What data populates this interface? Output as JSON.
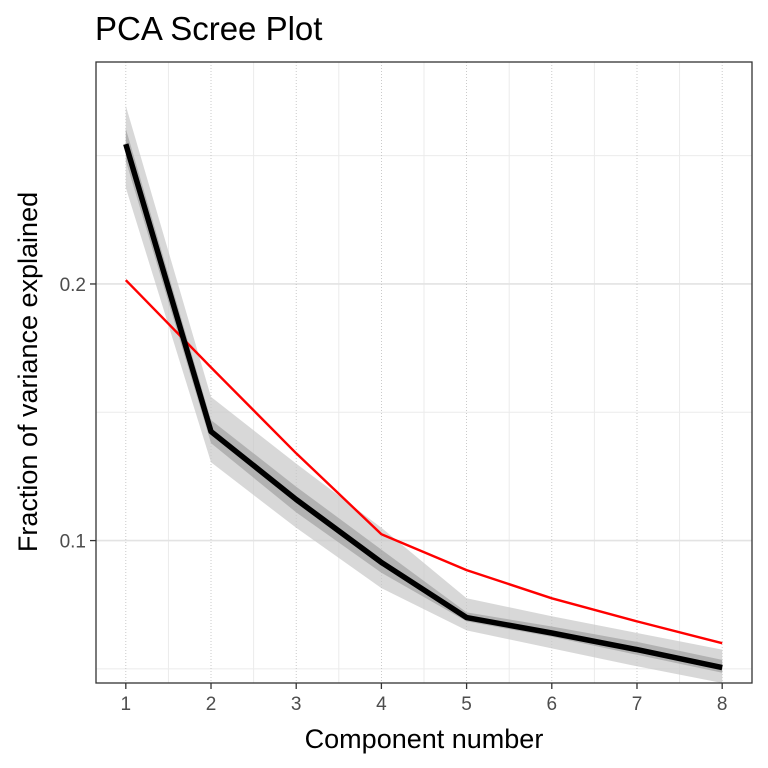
{
  "chart_data": {
    "type": "line",
    "title": "PCA Scree Plot",
    "xlabel": "Component number",
    "ylabel": "Fraction of variance explained",
    "x": [
      1,
      2,
      3,
      4,
      5,
      6,
      7,
      8
    ],
    "xticks": [
      1,
      2,
      3,
      4,
      5,
      6,
      7,
      8
    ],
    "yticks": [
      0.1,
      0.2
    ],
    "ytick_labels": [
      "0.1",
      "0.2"
    ],
    "xlim": [
      0.65,
      8.35
    ],
    "ylim": [
      0.0445,
      0.2865
    ],
    "grid": true,
    "legend": "none",
    "series": [
      {
        "role": "observed",
        "color": "#000000",
        "values": [
          0.2545,
          0.1425,
          0.116,
          0.0915,
          0.07,
          0.064,
          0.0575,
          0.0505
        ],
        "band_outer_upper": [
          0.2695,
          0.156,
          0.13,
          0.105,
          0.0775,
          0.0705,
          0.064,
          0.0575
        ],
        "band_outer_lower": [
          0.2375,
          0.1305,
          0.105,
          0.0815,
          0.065,
          0.058,
          0.051,
          0.0445
        ],
        "band_inner_upper": [
          0.2605,
          0.147,
          0.121,
          0.0965,
          0.072,
          0.0665,
          0.0605,
          0.0535
        ],
        "band_inner_lower": [
          0.248,
          0.138,
          0.111,
          0.0875,
          0.0685,
          0.0625,
          0.0555,
          0.0485
        ]
      },
      {
        "role": "reference",
        "color": "#ff0000",
        "values": [
          0.2015,
          0.1675,
          0.134,
          0.1025,
          0.0885,
          0.0775,
          0.0685,
          0.06
        ]
      }
    ]
  }
}
